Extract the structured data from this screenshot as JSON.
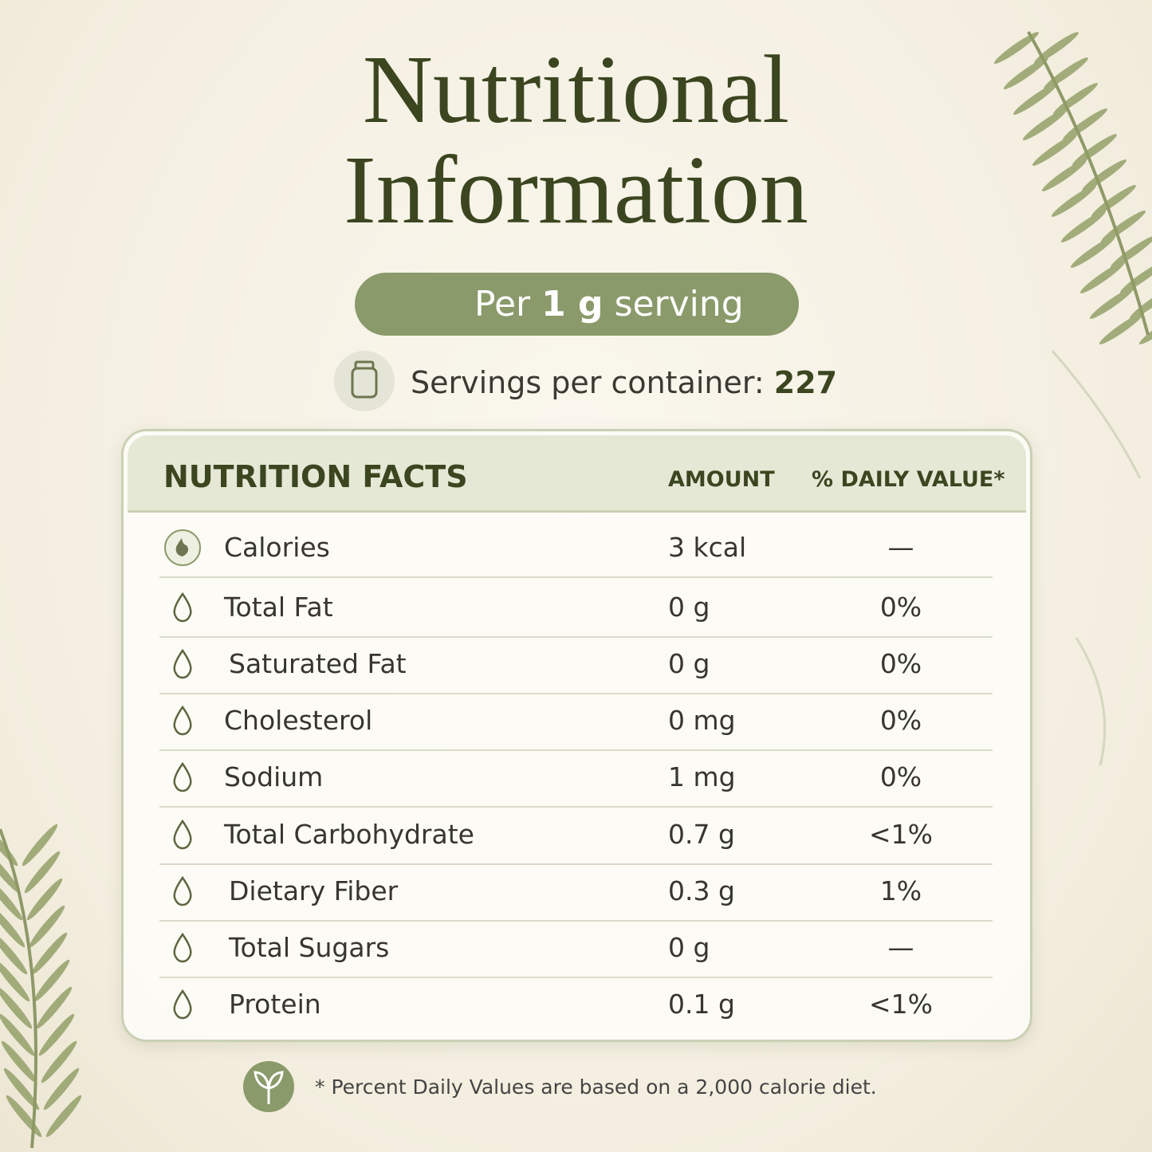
{
  "header": {
    "title": "Nutritional Information",
    "serving": {
      "prefix": "Per",
      "amount": "1 g",
      "suffix": "serving"
    },
    "servings_label": "Servings per container:",
    "servings_value": 227
  },
  "table": {
    "title": "NUTRITION FACTS",
    "columns": [
      "AMOUNT",
      "% DAILY VALUE*"
    ],
    "rows": [
      [
        "Calories",
        "3 kcal",
        "—"
      ],
      [
        "Total Fat",
        "0 g",
        "0%"
      ],
      [
        "Saturated Fat",
        "0 g",
        "0%"
      ],
      [
        "Cholesterol",
        "0 mg",
        "0%"
      ],
      [
        "Sodium",
        "1 mg",
        "0%"
      ],
      [
        "Total Carbohydrate",
        "0.7 g",
        "<1%"
      ],
      [
        "Dietary Fiber",
        "0.3 g",
        "1%"
      ],
      [
        "Total Sugars",
        "0 g",
        "—"
      ],
      [
        "Protein",
        "0.1 g",
        "<1%"
      ]
    ]
  },
  "footnote": "* Percent Daily Values are based on a 2,000 calorie diet."
}
